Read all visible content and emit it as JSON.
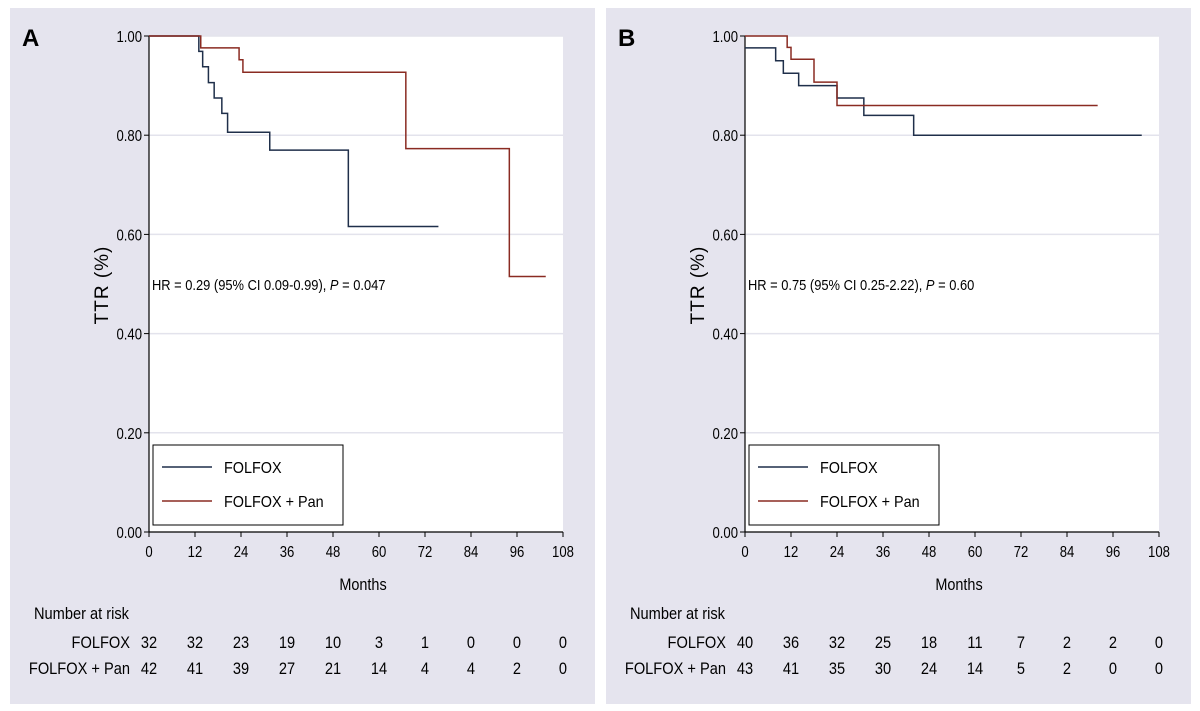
{
  "colors": {
    "panel_bg": "#e5e4ee",
    "plot_bg": "#ffffff",
    "grid": "#e3e3ec",
    "folfox": "#1f2f4a",
    "folfox_pan": "#8a2b22",
    "axis": "#000000"
  },
  "chart_data": [
    {
      "type": "line",
      "subtype": "kaplan-meier",
      "panel_label": "A",
      "xlabel": "Months",
      "ylabel": "TTR (%)",
      "xlim": [
        0,
        108
      ],
      "ylim": [
        0,
        1
      ],
      "xticks": [
        "0",
        "12",
        "24",
        "36",
        "48",
        "60",
        "72",
        "84",
        "96",
        "108"
      ],
      "yticks": [
        "0.00",
        "0.20",
        "0.40",
        "0.60",
        "0.80",
        "1.00"
      ],
      "grid": true,
      "legend_position": "bottom-left",
      "annotation": {
        "prefix": "HR = 0.29 (95% CI 0.09-0.99), ",
        "p_symbol": "P",
        "suffix": " = 0.047"
      },
      "series": [
        {
          "name": "FOLFOX",
          "x": [
            0,
            13,
            14,
            15.5,
            17,
            19,
            20.5,
            24,
            31.5,
            52,
            75.5
          ],
          "y": [
            1.0,
            0.969,
            0.938,
            0.906,
            0.875,
            0.844,
            0.806,
            0.806,
            0.77,
            0.616,
            0.616
          ]
        },
        {
          "name": "FOLFOX + Pan",
          "x": [
            0,
            13.5,
            23.5,
            24.5,
            25.5,
            67,
            94,
            103.5
          ],
          "y": [
            1.0,
            0.976,
            0.952,
            0.927,
            0.927,
            0.773,
            0.515,
            0.515
          ]
        }
      ],
      "risk_table": {
        "header": "Number at risk",
        "rows": [
          {
            "label": "FOLFOX",
            "values": [
              "32",
              "32",
              "23",
              "19",
              "10",
              "3",
              "1",
              "0",
              "0",
              "0"
            ]
          },
          {
            "label": "FOLFOX + Pan",
            "values": [
              "42",
              "41",
              "39",
              "27",
              "21",
              "14",
              "4",
              "4",
              "2",
              "0"
            ]
          }
        ]
      }
    },
    {
      "type": "line",
      "subtype": "kaplan-meier",
      "panel_label": "B",
      "xlabel": "Months",
      "ylabel": "TTR (%)",
      "xlim": [
        0,
        108
      ],
      "ylim": [
        0,
        1
      ],
      "xticks": [
        "0",
        "12",
        "24",
        "36",
        "48",
        "60",
        "72",
        "84",
        "96",
        "108"
      ],
      "yticks": [
        "0.00",
        "0.20",
        "0.40",
        "0.60",
        "0.80",
        "1.00"
      ],
      "grid": true,
      "legend_position": "bottom-left",
      "annotation": {
        "prefix": "HR = 0.75 (95% CI 0.25-2.22), ",
        "p_symbol": "P",
        "suffix": " = 0.60"
      },
      "series": [
        {
          "name": "FOLFOX",
          "x": [
            0,
            8,
            10,
            14,
            24,
            31,
            44,
            103.5
          ],
          "y": [
            0.976,
            0.95,
            0.925,
            0.9,
            0.875,
            0.84,
            0.8,
            0.8
          ]
        },
        {
          "name": "FOLFOX + Pan",
          "x": [
            0,
            11,
            12,
            18,
            24,
            92
          ],
          "y": [
            1.0,
            0.977,
            0.953,
            0.907,
            0.86,
            0.86
          ]
        }
      ],
      "risk_table": {
        "header": "Number at risk",
        "rows": [
          {
            "label": "FOLFOX",
            "values": [
              "40",
              "36",
              "32",
              "25",
              "18",
              "11",
              "7",
              "2",
              "2",
              "0"
            ]
          },
          {
            "label": "FOLFOX + Pan",
            "values": [
              "43",
              "41",
              "35",
              "30",
              "24",
              "14",
              "5",
              "2",
              "0",
              "0"
            ]
          }
        ]
      }
    }
  ]
}
